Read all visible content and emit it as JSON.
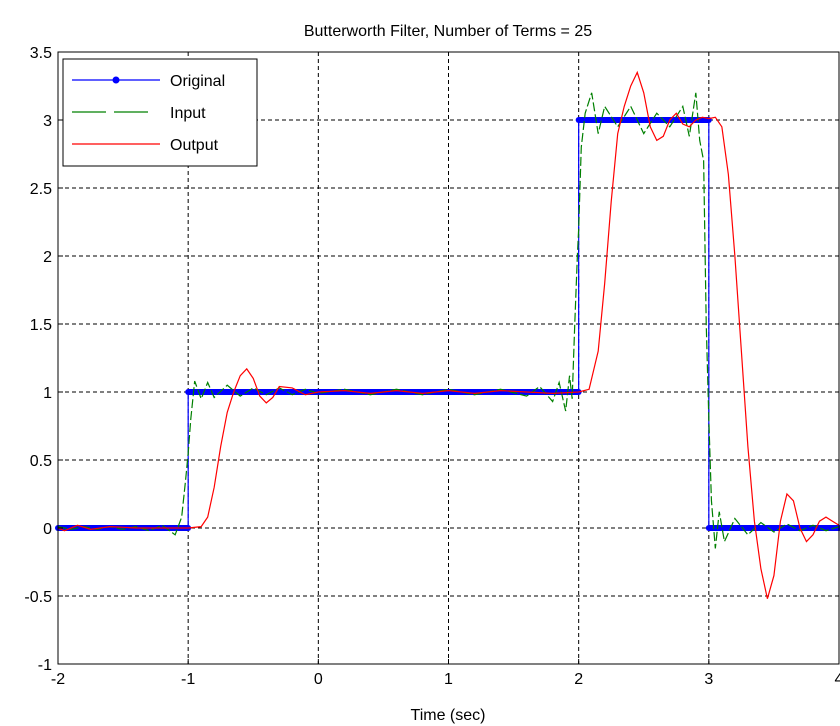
{
  "chart_data": {
    "type": "line",
    "title": "Butterworth Filter,  Number of Terms = 25",
    "xlabel": "Time (sec)",
    "ylabel": "",
    "xlim": [
      -2,
      4
    ],
    "ylim": [
      -1,
      3.5
    ],
    "xticks": [
      "-2",
      "-1",
      "0",
      "1",
      "2",
      "3",
      "4"
    ],
    "yticks": [
      "-1",
      "-0.5",
      "0",
      "0.5",
      "1",
      "1.5",
      "2",
      "2.5",
      "3",
      "3.5"
    ],
    "grid": true,
    "legend_position": "top-left",
    "series": [
      {
        "name": "Original",
        "color": "#0000ff",
        "style": "solid-with-dots",
        "points": [
          [
            -2,
            0
          ],
          [
            -1,
            0
          ],
          [
            -1,
            1
          ],
          [
            2,
            1
          ],
          [
            2,
            3
          ],
          [
            3,
            3
          ],
          [
            3,
            0
          ],
          [
            4,
            0
          ]
        ]
      },
      {
        "name": "Input",
        "color": "#008000",
        "style": "dashed",
        "points": [
          [
            -2,
            0.01
          ],
          [
            -1.9,
            -0.01
          ],
          [
            -1.8,
            0.01
          ],
          [
            -1.7,
            -0.01
          ],
          [
            -1.6,
            0.01
          ],
          [
            -1.5,
            -0.01
          ],
          [
            -1.4,
            0.01
          ],
          [
            -1.3,
            -0.02
          ],
          [
            -1.2,
            0.02
          ],
          [
            -1.1,
            -0.05
          ],
          [
            -1.05,
            0.08
          ],
          [
            -1.02,
            0.35
          ],
          [
            -1.0,
            0.55
          ],
          [
            -0.98,
            0.8
          ],
          [
            -0.95,
            1.08
          ],
          [
            -0.9,
            0.95
          ],
          [
            -0.85,
            1.07
          ],
          [
            -0.8,
            0.96
          ],
          [
            -0.7,
            1.05
          ],
          [
            -0.6,
            0.97
          ],
          [
            -0.5,
            1.03
          ],
          [
            -0.4,
            0.98
          ],
          [
            -0.3,
            1.03
          ],
          [
            -0.2,
            0.98
          ],
          [
            -0.1,
            1.02
          ],
          [
            0,
            0.99
          ],
          [
            0.2,
            1.02
          ],
          [
            0.4,
            0.98
          ],
          [
            0.6,
            1.02
          ],
          [
            0.8,
            0.98
          ],
          [
            1.0,
            1.02
          ],
          [
            1.2,
            0.98
          ],
          [
            1.4,
            1.02
          ],
          [
            1.6,
            0.97
          ],
          [
            1.7,
            1.04
          ],
          [
            1.8,
            0.93
          ],
          [
            1.85,
            1.07
          ],
          [
            1.9,
            0.86
          ],
          [
            1.93,
            1.12
          ],
          [
            1.95,
            0.95
          ],
          [
            1.97,
            1.5
          ],
          [
            1.99,
            2.0
          ],
          [
            2.0,
            2.2
          ],
          [
            2.02,
            2.8
          ],
          [
            2.05,
            3.05
          ],
          [
            2.1,
            3.2
          ],
          [
            2.15,
            2.9
          ],
          [
            2.2,
            3.1
          ],
          [
            2.3,
            2.95
          ],
          [
            2.4,
            3.1
          ],
          [
            2.5,
            2.9
          ],
          [
            2.6,
            3.05
          ],
          [
            2.7,
            2.95
          ],
          [
            2.8,
            3.1
          ],
          [
            2.85,
            2.88
          ],
          [
            2.9,
            3.2
          ],
          [
            2.93,
            2.85
          ],
          [
            2.96,
            2.7
          ],
          [
            2.98,
            1.5
          ],
          [
            3.0,
            0.8
          ],
          [
            3.02,
            0.2
          ],
          [
            3.05,
            -0.15
          ],
          [
            3.08,
            0.12
          ],
          [
            3.12,
            -0.1
          ],
          [
            3.2,
            0.07
          ],
          [
            3.3,
            -0.05
          ],
          [
            3.4,
            0.04
          ],
          [
            3.5,
            -0.03
          ],
          [
            3.6,
            0.03
          ],
          [
            3.7,
            -0.02
          ],
          [
            3.8,
            0.02
          ],
          [
            3.9,
            -0.02
          ],
          [
            4.0,
            0.01
          ]
        ]
      },
      {
        "name": "Output",
        "color": "#ff0000",
        "style": "solid",
        "points": [
          [
            -2,
            0
          ],
          [
            -1.95,
            -0.02
          ],
          [
            -1.85,
            0.02
          ],
          [
            -1.75,
            -0.01
          ],
          [
            -1.6,
            0.01
          ],
          [
            -1.4,
            0.0
          ],
          [
            -1.2,
            0.0
          ],
          [
            -1.0,
            0.0
          ],
          [
            -0.9,
            0.01
          ],
          [
            -0.85,
            0.08
          ],
          [
            -0.8,
            0.3
          ],
          [
            -0.75,
            0.6
          ],
          [
            -0.7,
            0.85
          ],
          [
            -0.65,
            1.0
          ],
          [
            -0.6,
            1.12
          ],
          [
            -0.55,
            1.17
          ],
          [
            -0.5,
            1.1
          ],
          [
            -0.45,
            0.97
          ],
          [
            -0.4,
            0.92
          ],
          [
            -0.35,
            0.96
          ],
          [
            -0.3,
            1.04
          ],
          [
            -0.2,
            1.03
          ],
          [
            -0.1,
            0.98
          ],
          [
            0.0,
            1.0
          ],
          [
            0.2,
            1.01
          ],
          [
            0.4,
            0.99
          ],
          [
            0.6,
            1.01
          ],
          [
            0.8,
            0.99
          ],
          [
            1.0,
            1.01
          ],
          [
            1.2,
            0.99
          ],
          [
            1.4,
            1.01
          ],
          [
            1.6,
            1.0
          ],
          [
            1.8,
            0.99
          ],
          [
            2.0,
            1.0
          ],
          [
            2.08,
            1.02
          ],
          [
            2.15,
            1.3
          ],
          [
            2.2,
            1.8
          ],
          [
            2.25,
            2.4
          ],
          [
            2.3,
            2.9
          ],
          [
            2.35,
            3.1
          ],
          [
            2.4,
            3.25
          ],
          [
            2.45,
            3.35
          ],
          [
            2.5,
            3.2
          ],
          [
            2.55,
            2.95
          ],
          [
            2.6,
            2.85
          ],
          [
            2.65,
            2.88
          ],
          [
            2.7,
            3.0
          ],
          [
            2.75,
            3.05
          ],
          [
            2.8,
            2.97
          ],
          [
            2.85,
            2.95
          ],
          [
            2.9,
            3.0
          ],
          [
            2.95,
            3.02
          ],
          [
            3.0,
            3.01
          ],
          [
            3.05,
            3.02
          ],
          [
            3.1,
            2.95
          ],
          [
            3.15,
            2.6
          ],
          [
            3.2,
            2.0
          ],
          [
            3.25,
            1.3
          ],
          [
            3.3,
            0.6
          ],
          [
            3.35,
            0.05
          ],
          [
            3.4,
            -0.3
          ],
          [
            3.45,
            -0.52
          ],
          [
            3.5,
            -0.35
          ],
          [
            3.55,
            0.05
          ],
          [
            3.6,
            0.25
          ],
          [
            3.65,
            0.2
          ],
          [
            3.7,
            0.0
          ],
          [
            3.75,
            -0.1
          ],
          [
            3.8,
            -0.05
          ],
          [
            3.85,
            0.05
          ],
          [
            3.9,
            0.08
          ],
          [
            3.95,
            0.05
          ],
          [
            4.0,
            0.02
          ]
        ]
      }
    ]
  }
}
